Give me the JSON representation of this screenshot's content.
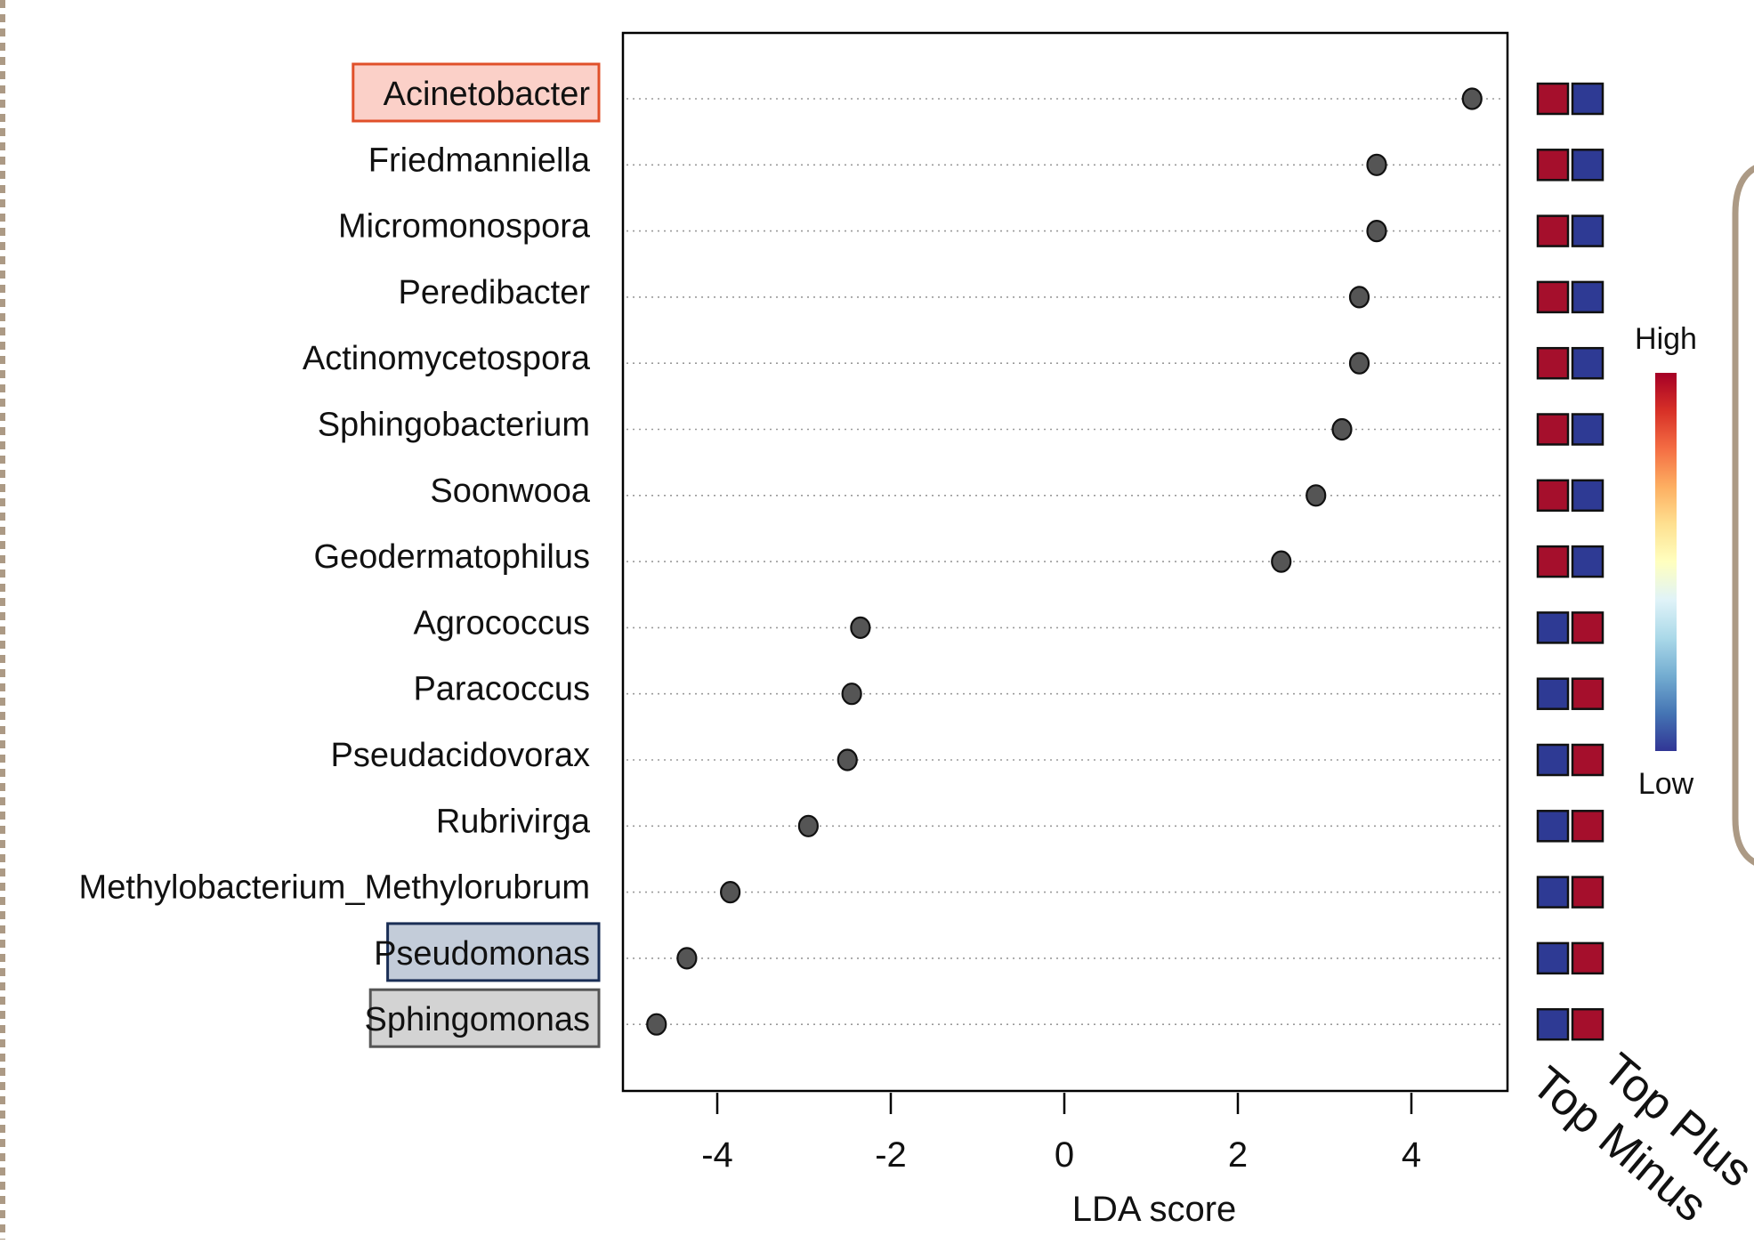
{
  "chart_data": {
    "type": "scatter",
    "subtype": "lda-lollipop",
    "xlabel": "LDA score",
    "ylabel": "",
    "title": "",
    "xlim": [
      -5,
      5.2
    ],
    "xticks": [
      "-4",
      "-2",
      "0",
      "2",
      "4"
    ],
    "xtick_values": [
      -4,
      -2,
      0,
      2,
      4
    ],
    "grid": "dotted horizontal guide lines per row",
    "categories": [
      "Acinetobacter",
      "Friedmanniella",
      "Micromonospora",
      "Peredibacter",
      "Actinomycetospora",
      "Sphingobacterium",
      "Soonwooa",
      "Geodermatophilus",
      "Agrococcus",
      "Paracoccus",
      "Pseudacidovorax",
      "Rubrivirga",
      "Methylobacterium_Methylorubrum",
      "Pseudomonas",
      "Sphingomonas"
    ],
    "values": [
      4.7,
      3.6,
      3.6,
      3.4,
      3.4,
      3.2,
      2.9,
      2.5,
      -2.35,
      -2.45,
      -2.5,
      -2.95,
      -3.85,
      -4.35,
      -4.7
    ],
    "highlighted_labels": [
      {
        "label": "Acinetobacter",
        "fill": "#fbd0c8",
        "border": "#e0502a"
      },
      {
        "label": "Pseudomonas",
        "fill": "#c3ccd9",
        "border": "#1a2e55"
      },
      {
        "label": "Sphingomonas",
        "fill": "#d3d3d3",
        "border": "#555555"
      }
    ],
    "heatmap": {
      "columns": [
        "Top Plus",
        "Top Minus"
      ],
      "levels": [
        [
          "High",
          "Low"
        ],
        [
          "High",
          "Low"
        ],
        [
          "High",
          "Low"
        ],
        [
          "High",
          "Low"
        ],
        [
          "High",
          "Low"
        ],
        [
          "High",
          "Low"
        ],
        [
          "High",
          "Low"
        ],
        [
          "High",
          "Low"
        ],
        [
          "Low",
          "High"
        ],
        [
          "Low",
          "High"
        ],
        [
          "Low",
          "High"
        ],
        [
          "Low",
          "High"
        ],
        [
          "Low",
          "High"
        ],
        [
          "Low",
          "High"
        ],
        [
          "Low",
          "High"
        ]
      ],
      "high_color": "#a50f2c",
      "low_color": "#2e3a94"
    },
    "colorbar": {
      "high_label": "High",
      "low_label": "Low",
      "stops": [
        "#a50026",
        "#d73027",
        "#f46d43",
        "#fdae61",
        "#fee090",
        "#ffffbf",
        "#e0f3f8",
        "#abd9e9",
        "#74add1",
        "#4575b4",
        "#313695"
      ]
    },
    "point_color": "#555555",
    "frame_decor_color": "#ac9a85"
  }
}
